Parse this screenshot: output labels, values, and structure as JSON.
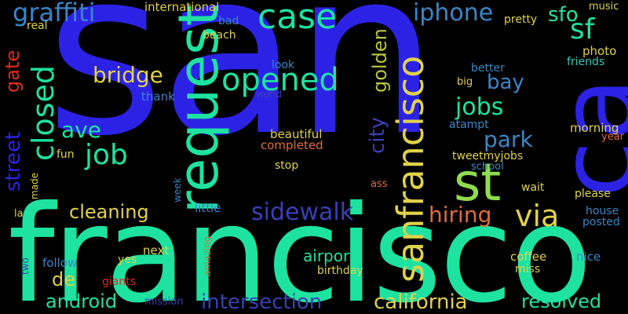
{
  "colors": {
    "background": "#000000",
    "blue": "#2c22e6",
    "teal": "#1ee2a0",
    "lightgreen": "#8fdc4d",
    "yellow": "#e0d24a",
    "orange": "#e06d3b",
    "steel": "#3a86c8",
    "cyan": "#33c7b8",
    "navy": "#3a3fb8",
    "red": "#e02b22",
    "olive": "#b9c640"
  },
  "words": {
    "san": "san",
    "francisco": "francisco",
    "ca": "ca",
    "request": "request",
    "st": "st",
    "sanfrancisco": "sanfrancisco",
    "case": "case",
    "opened": "opened",
    "closed": "closed",
    "graffiti": "graffiti",
    "iphone": "iphone",
    "sf": "sf",
    "sfo": "sfo",
    "jobs": "jobs",
    "bay": "bay",
    "job": "job",
    "bridge": "bridge",
    "ave": "ave",
    "park": "park",
    "sidewalk": "sidewalk",
    "via": "via",
    "hiring": "hiring",
    "cleaning": "cleaning",
    "street": "street",
    "gate": "gate",
    "golden": "golden",
    "city": "city",
    "california": "california",
    "intersection": "intersection",
    "android": "android",
    "resolved": "resolved",
    "airport": "airport",
    "de": "de",
    "international": "international",
    "bad": "bad",
    "real": "real",
    "beach": "beach",
    "pretty": "pretty",
    "music": "music",
    "photo": "photo",
    "friends": "friends",
    "look": "look",
    "world": "world",
    "thank": "thank",
    "better": "better",
    "big": "big",
    "atampt": "atampt",
    "morning": "morning",
    "year": "year",
    "beautiful": "beautiful",
    "completed": "completed",
    "fun": "fun",
    "tweetmyjobs": "tweetmyjobs",
    "school": "school",
    "stop": "stop",
    "made": "made",
    "week": "week",
    "ass": "ass",
    "wait": "wait",
    "please": "please",
    "little": "little",
    "la": "la",
    "house": "house",
    "posted": "posted",
    "amazing": "amazing",
    "next": "next",
    "yes": "yes",
    "follow": "follow",
    "two": "two",
    "giants": "giants",
    "birthday": "birthday",
    "coffee": "coffee",
    "miss": "miss",
    "nice": "nice",
    "mission": "mission"
  }
}
